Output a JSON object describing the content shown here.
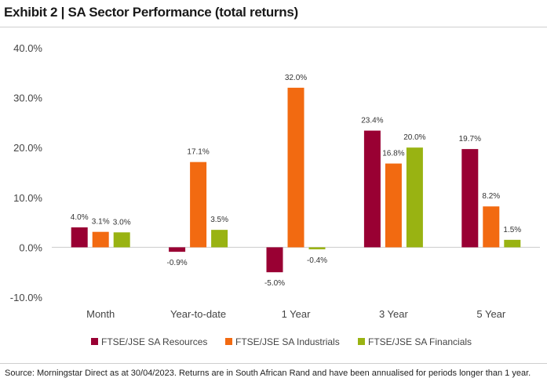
{
  "title": "Exhibit 2 | SA Sector Performance (total returns)",
  "source": "Source: Morningstar Direct as at 30/04/2023. Returns are in South African Rand and have been annualised for periods longer than 1 year.",
  "chart_data": {
    "type": "bar",
    "categories": [
      "Month",
      "Year-to-date",
      "1 Year",
      "3 Year",
      "5 Year"
    ],
    "series": [
      {
        "name": "FTSE/JSE SA Resources",
        "color": "#990033",
        "values": [
          4.0,
          -0.9,
          -5.0,
          23.4,
          19.7
        ]
      },
      {
        "name": "FTSE/JSE SA Industrials",
        "color": "#f26a11",
        "values": [
          3.1,
          17.1,
          32.0,
          16.8,
          8.2
        ]
      },
      {
        "name": "FTSE/JSE SA Financials",
        "color": "#99b312",
        "values": [
          3.0,
          3.5,
          -0.4,
          20.0,
          1.5
        ]
      }
    ],
    "ylim": [
      -10,
      40
    ],
    "yticks": [
      -10,
      0,
      10,
      20,
      30,
      40
    ],
    "ytick_labels": [
      "-10.0%",
      "0.0%",
      "10.0%",
      "20.0%",
      "30.0%",
      "40.0%"
    ],
    "data_labels": [
      [
        "4.0%",
        "-0.9%",
        "-5.0%",
        "23.4%",
        "19.7%"
      ],
      [
        "3.1%",
        "17.1%",
        "32.0%",
        "16.8%",
        "8.2%"
      ],
      [
        "3.0%",
        "3.5%",
        "-0.4%",
        "20.0%",
        "1.5%"
      ]
    ],
    "legend": "bottom",
    "grid": false
  }
}
